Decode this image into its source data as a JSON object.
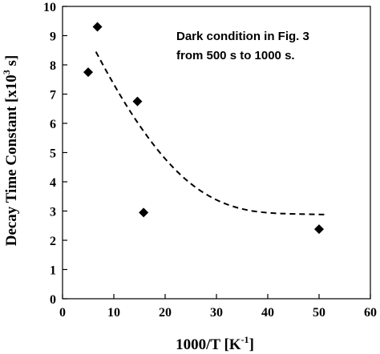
{
  "chart_data": {
    "type": "scatter",
    "xlabel": "1000/T [K",
    "xlabel_sup": "-1",
    "xlabel_end": "]",
    "ylabel": "Decay Time Constant [x10",
    "ylabel_sup": "3",
    "ylabel_end": " s]",
    "xlim": [
      0,
      60
    ],
    "ylim": [
      0,
      10
    ],
    "xticks": [
      0,
      10,
      20,
      30,
      40,
      50,
      60
    ],
    "yticks": [
      0,
      1,
      2,
      3,
      4,
      5,
      6,
      7,
      8,
      9,
      10
    ],
    "grid": false,
    "series": [
      {
        "marker": "diamond",
        "color": "#000000",
        "points": [
          {
            "x": 5.0,
            "y": 7.75
          },
          {
            "x": 6.8,
            "y": 9.3
          },
          {
            "x": 14.6,
            "y": 6.75
          },
          {
            "x": 15.8,
            "y": 2.95
          },
          {
            "x": 50.0,
            "y": 2.38
          }
        ]
      }
    ],
    "trend": {
      "style": "dashed",
      "color": "#000000",
      "points": [
        {
          "x": 6.5,
          "y": 8.45
        },
        {
          "x": 10,
          "y": 7.3
        },
        {
          "x": 15,
          "y": 5.9
        },
        {
          "x": 20,
          "y": 4.75
        },
        {
          "x": 25,
          "y": 3.9
        },
        {
          "x": 30,
          "y": 3.35
        },
        {
          "x": 35,
          "y": 3.05
        },
        {
          "x": 40,
          "y": 2.93
        },
        {
          "x": 45,
          "y": 2.9
        },
        {
          "x": 51,
          "y": 2.88
        }
      ]
    },
    "annotation": {
      "line1": "Dark condition in Fig. 3",
      "line2": "from 500 s to 1000 s."
    }
  }
}
